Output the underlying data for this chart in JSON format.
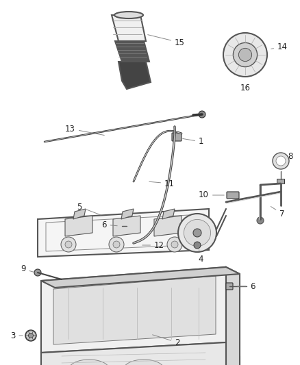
{
  "background_color": "#ffffff",
  "fig_width": 4.38,
  "fig_height": 5.33,
  "dpi": 100,
  "line_color": "#555555",
  "label_color": "#222222",
  "label_fontsize": 8.5,
  "label_line_color": "#888888",
  "label_line_lw": 0.7
}
